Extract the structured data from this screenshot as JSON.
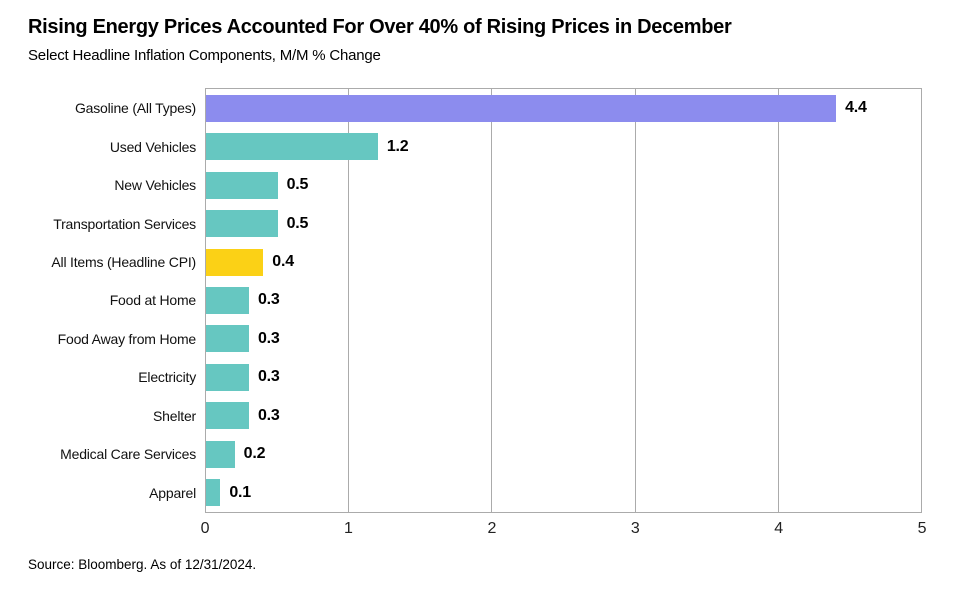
{
  "header": {
    "title": "Rising Energy Prices Accounted For Over 40% of Rising Prices in December",
    "subtitle": "Select Headline Inflation Components, M/M % Change"
  },
  "footer": {
    "source": "Source: Bloomberg. As of 12/31/2024."
  },
  "colors": {
    "bar_teal": "#66C7C1",
    "bar_purple": "#8C8CEE",
    "bar_yellow": "#FBD116",
    "gridline": "#ABABAB",
    "text": "#000000",
    "background": "#FFFFFF"
  },
  "chart_data": {
    "type": "bar",
    "orientation": "horizontal",
    "title": "Rising Energy Prices Accounted For Over 40% of Rising Prices in December",
    "subtitle": "Select Headline Inflation Components, M/M % Change",
    "categories": [
      "Gasoline (All Types)",
      "Used Vehicles",
      "New Vehicles",
      "Transportation Services",
      "All Items (Headline CPI)",
      "Food at Home",
      "Food Away from Home",
      "Electricity",
      "Shelter",
      "Medical Care Services",
      "Apparel"
    ],
    "values": [
      4.4,
      1.2,
      0.5,
      0.5,
      0.4,
      0.3,
      0.3,
      0.3,
      0.3,
      0.2,
      0.1
    ],
    "value_labels": [
      "4.4",
      "1.2",
      "0.5",
      "0.5",
      "0.4",
      "0.3",
      "0.3",
      "0.3",
      "0.3",
      "0.2",
      "0.1"
    ],
    "bar_colors": [
      "#8C8CEE",
      "#66C7C1",
      "#66C7C1",
      "#66C7C1",
      "#FBD116",
      "#66C7C1",
      "#66C7C1",
      "#66C7C1",
      "#66C7C1",
      "#66C7C1",
      "#66C7C1"
    ],
    "xlabel": "",
    "ylabel": "",
    "xlim": [
      0,
      5
    ],
    "x_ticks": [
      0,
      1,
      2,
      3,
      4,
      5
    ],
    "grid": "vertical",
    "legend": "none",
    "source": "Source: Bloomberg. As of 12/31/2024."
  }
}
